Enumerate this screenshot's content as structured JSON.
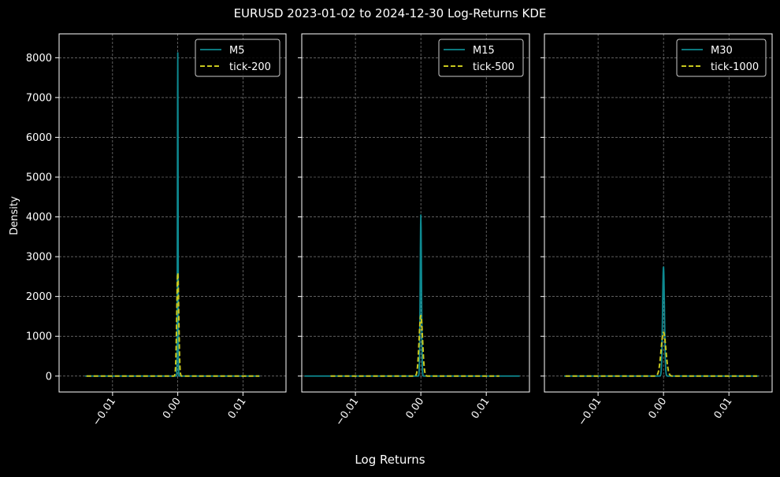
{
  "figure": {
    "title": "EURUSD 2023-01-02 to 2024-12-30 Log-Returns KDE",
    "xlabel": "Log Returns",
    "ylabel": "Density",
    "background": "#000000",
    "grid": true
  },
  "chart_data": [
    {
      "type": "line",
      "xlim": [
        -0.0182,
        0.0166
      ],
      "ylim": [
        -400,
        8600
      ],
      "yticks": [
        0,
        1000,
        2000,
        3000,
        4000,
        5000,
        6000,
        7000,
        8000
      ],
      "xticks": [
        -0.01,
        0.0,
        0.01
      ],
      "xtick_labels": [
        "−0.01",
        "0.00",
        "0.01"
      ],
      "legend_position": "top-right",
      "series": [
        {
          "name": "M5",
          "color": "#0e8a91",
          "style": "solid",
          "peak": 8150,
          "center": 0.0,
          "sigma": 4.9e-05,
          "range": [
            -0.0142,
            0.0126
          ]
        },
        {
          "name": "tick-200",
          "color": "#c8c81e",
          "style": "dashed",
          "peak": 2600,
          "center": 0.0,
          "sigma": 0.000153,
          "range": [
            -0.014,
            0.0125
          ]
        }
      ]
    },
    {
      "type": "line",
      "xlim": [
        -0.0182,
        0.0166
      ],
      "ylim": [
        -400,
        8600
      ],
      "yticks": [
        0,
        1000,
        2000,
        3000,
        4000,
        5000,
        6000,
        7000,
        8000
      ],
      "xticks": [
        -0.01,
        0.0,
        0.01
      ],
      "xtick_labels": [
        "−0.01",
        "0.00",
        "0.01"
      ],
      "legend_position": "top-right",
      "series": [
        {
          "name": "M15",
          "color": "#0e8a91",
          "style": "solid",
          "peak": 4050,
          "center": 0.0,
          "sigma": 9.85e-05,
          "range": [
            -0.0178,
            0.0151
          ]
        },
        {
          "name": "tick-500",
          "color": "#c8c81e",
          "style": "dashed",
          "peak": 1520,
          "center": 0.0,
          "sigma": 0.000262,
          "range": [
            -0.0138,
            0.012
          ]
        }
      ]
    },
    {
      "type": "line",
      "xlim": [
        -0.0182,
        0.0166
      ],
      "ylim": [
        -400,
        8600
      ],
      "yticks": [
        0,
        1000,
        2000,
        3000,
        4000,
        5000,
        6000,
        7000,
        8000
      ],
      "xticks": [
        -0.01,
        0.0,
        0.01
      ],
      "xtick_labels": [
        "−0.01",
        "0.00",
        "0.01"
      ],
      "legend_position": "top-right",
      "series": [
        {
          "name": "M30",
          "color": "#0e8a91",
          "style": "solid",
          "peak": 2750,
          "center": 0.0,
          "sigma": 0.000145,
          "range": [
            -0.0152,
            0.0145
          ]
        },
        {
          "name": "tick-1000",
          "color": "#c8c81e",
          "style": "dashed",
          "peak": 1100,
          "center": 0.0,
          "sigma": 0.000363,
          "range": [
            -0.015,
            0.0143
          ]
        }
      ]
    }
  ]
}
